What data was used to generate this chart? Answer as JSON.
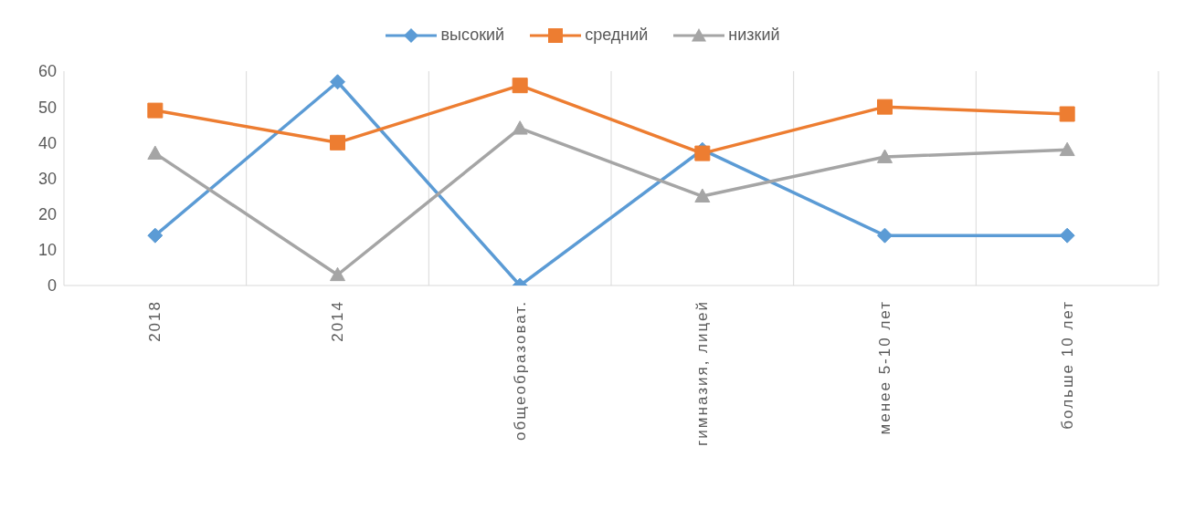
{
  "chart_data": {
    "type": "line",
    "categories": [
      "2018",
      "2014",
      "общеобразоват.",
      "гимназия, лицей",
      "менее 5-10 лет",
      "больше 10 лет"
    ],
    "series": [
      {
        "name": "высокий",
        "color": "#5b9bd5",
        "marker": "diamond",
        "values": [
          14,
          57,
          0,
          38,
          14,
          14
        ]
      },
      {
        "name": "средний",
        "color": "#ed7d31",
        "marker": "square",
        "values": [
          49,
          40,
          56,
          37,
          50,
          48
        ]
      },
      {
        "name": "низкий",
        "color": "#a5a5a5",
        "marker": "triangle",
        "values": [
          37,
          3,
          44,
          25,
          36,
          38
        ]
      }
    ],
    "ylim": [
      0,
      60
    ],
    "yticks": [
      0,
      10,
      20,
      30,
      40,
      50,
      60
    ],
    "grid": "x",
    "legend": "top"
  }
}
